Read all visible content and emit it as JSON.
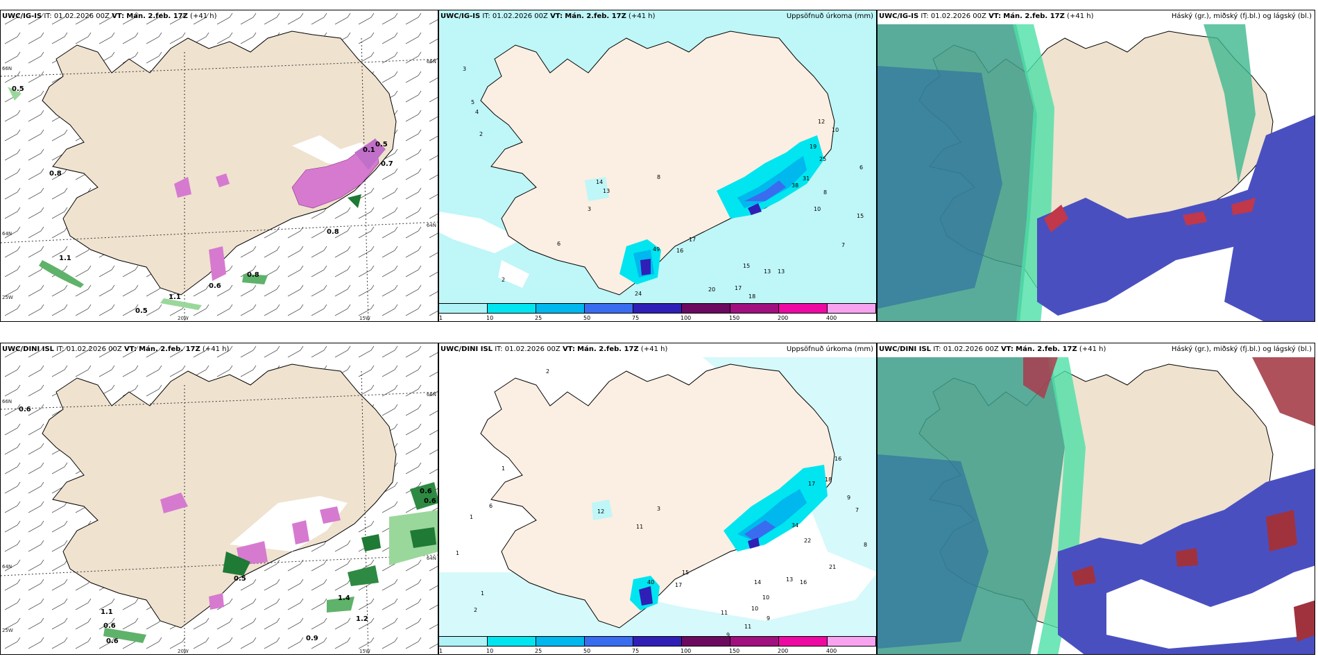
{
  "rows": [
    {
      "model": "UWC/IG-IS",
      "it_label": "IT:",
      "it_value": "01.02.2026 00Z",
      "vt_label": "VT:",
      "vt_value": "Mán. 2.feb. 17Z",
      "lead": "(+41 h)"
    },
    {
      "model": "UWC/DINI ISL",
      "it_label": "IT:",
      "it_value": "01.02.2026 00Z",
      "vt_label": "VT:",
      "vt_value": "Mán. 2.feb. 17Z",
      "lead": "(+41 h)"
    }
  ],
  "panel_titles": {
    "precip": "Uppsöfnuð úrkoma (mm)",
    "cloud": "Háský (gr.), miðský (fj.bl.) og lágský (bl.)"
  },
  "axis_labels": {
    "lat_66": "66N",
    "lat_64": "64N",
    "lon_25": "25W",
    "lon_20": "20W",
    "lon_15": "15W"
  },
  "colorbar": {
    "labels": [
      "1",
      "10",
      "25",
      "50",
      "75",
      "100",
      "150",
      "200",
      "400"
    ],
    "colors": [
      "#aff3f7",
      "#00e5ef",
      "#00b7ee",
      "#3a6cf0",
      "#2f1fb7",
      "#6b0a5e",
      "#a0107f",
      "#ee0aa2",
      "#f7a3f0"
    ]
  },
  "wind_values": {
    "top": [
      "0.5",
      "0.8",
      "1.1",
      "1.1",
      "0.5",
      "0.8",
      "0.6",
      "0.8",
      "0.5",
      "0.7",
      "0.1"
    ],
    "bottom": [
      "0.6",
      "1.1",
      "0.6",
      "0.6",
      "0.9",
      "0.5",
      "0.6",
      "0.6",
      "1.4",
      "1.2"
    ]
  },
  "precip_values": {
    "top": [
      "3",
      "5",
      "4",
      "2",
      "2",
      "14",
      "13",
      "8",
      "3",
      "6",
      "49",
      "16",
      "17",
      "15",
      "24",
      "20",
      "17",
      "18",
      "13",
      "13",
      "38",
      "31",
      "25",
      "19",
      "12",
      "10",
      "10",
      "8",
      "15",
      "7",
      "6"
    ],
    "bottom": [
      "2",
      "1",
      "1",
      "6",
      "1",
      "12",
      "3",
      "11",
      "2",
      "1",
      "40",
      "17",
      "15",
      "10",
      "11",
      "9",
      "9",
      "11",
      "10",
      "14",
      "13",
      "16",
      "21",
      "34",
      "22",
      "17",
      "18",
      "16",
      "9",
      "7",
      "8"
    ]
  }
}
